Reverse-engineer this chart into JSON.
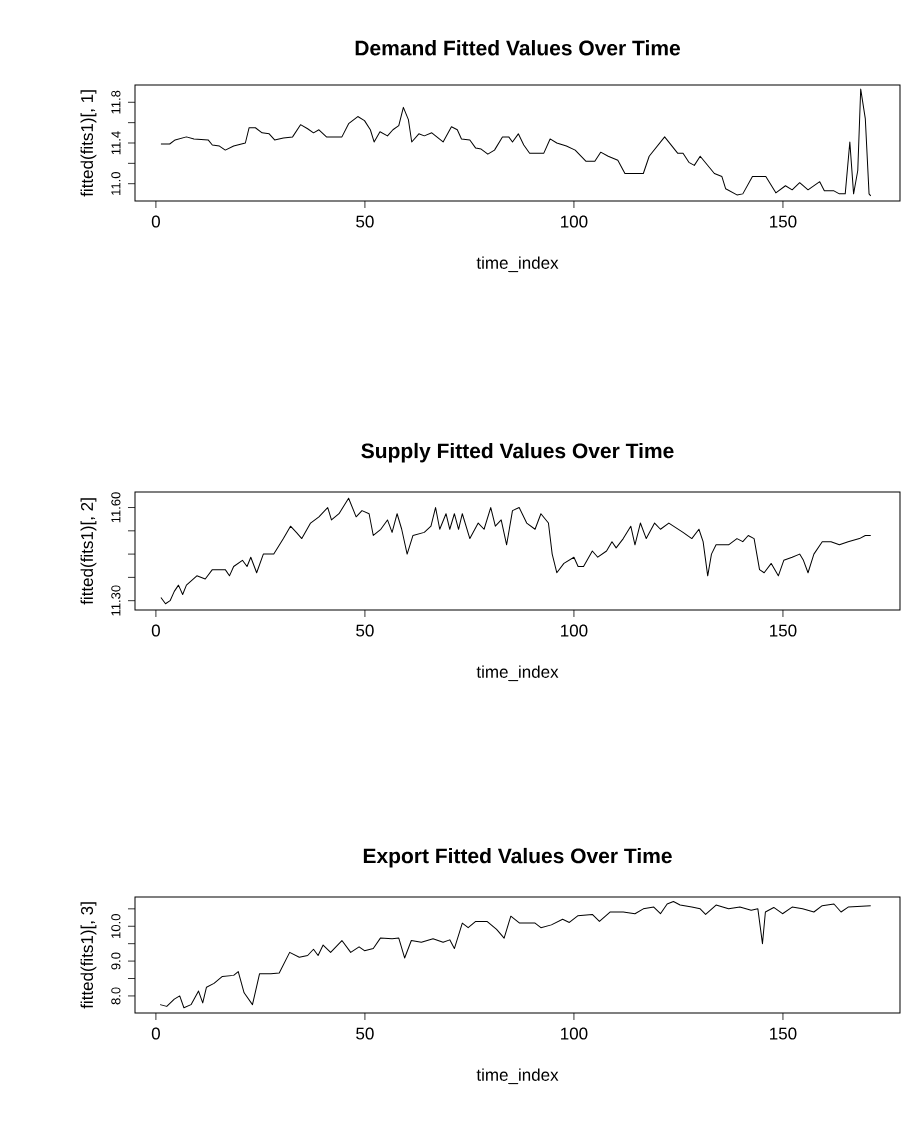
{
  "chart_data": [
    {
      "type": "line",
      "title": "Demand Fitted Values Over Time",
      "xlabel": "time_index",
      "ylabel": "fitted(fits1)[, 1]",
      "color": "#000000",
      "marker": "none",
      "line_style": "solid",
      "x": [
        1.2,
        3.3,
        4.6,
        7.3,
        9.1,
        12.5,
        13.5,
        15.2,
        16.6,
        18.6,
        21.4,
        22.3,
        23.8,
        25.4,
        27.1,
        28.4,
        30.5,
        32.7,
        34.6,
        36.3,
        37.7,
        39,
        40.8,
        44.5,
        46.1,
        48.3,
        49.9,
        51.3,
        52.2,
        53.6,
        55.4,
        56.7,
        58.1,
        59.2,
        60.4,
        61.2,
        62.9,
        64.2,
        66,
        68.7,
        70.7,
        72.1,
        73.1,
        75.1,
        76.5,
        77.8,
        79.4,
        81,
        82.9,
        84.4,
        85.3,
        86.7,
        88,
        89.4,
        92.8,
        94.3,
        95.9,
        98.2,
        100.3,
        102.9,
        105,
        106.4,
        108.2,
        110.5,
        112.2,
        116.6,
        118,
        121.7,
        124.8,
        126.1,
        127.5,
        128.8,
        130.2,
        133.6,
        135.4,
        136.3,
        139,
        140.4,
        142.7,
        145.9,
        148.3,
        150.6,
        152.2,
        154,
        156,
        158.8,
        159.9,
        162.2,
        163.5,
        164.9,
        166,
        166.9,
        167.9,
        168.6,
        169.7,
        170.6,
        171
      ],
      "values": [
        11.39,
        11.39,
        11.43,
        11.46,
        11.44,
        11.43,
        11.38,
        11.37,
        11.33,
        11.37,
        11.4,
        11.55,
        11.55,
        11.5,
        11.49,
        11.43,
        11.45,
        11.46,
        11.58,
        11.54,
        11.5,
        11.53,
        11.46,
        11.46,
        11.59,
        11.66,
        11.62,
        11.53,
        11.41,
        11.51,
        11.47,
        11.53,
        11.57,
        11.75,
        11.63,
        11.41,
        11.49,
        11.47,
        11.5,
        11.41,
        11.56,
        11.53,
        11.44,
        11.43,
        11.35,
        11.34,
        11.29,
        11.33,
        11.46,
        11.46,
        11.41,
        11.49,
        11.38,
        11.3,
        11.3,
        11.44,
        11.4,
        11.37,
        11.33,
        11.22,
        11.22,
        11.31,
        11.27,
        11.23,
        11.1,
        11.1,
        11.27,
        11.46,
        11.3,
        11.3,
        11.21,
        11.18,
        11.27,
        11.1,
        11.07,
        10.95,
        10.89,
        10.9,
        11.07,
        11.07,
        10.91,
        10.98,
        10.94,
        11.01,
        10.94,
        11.02,
        10.93,
        10.93,
        10.9,
        10.9,
        11.41,
        10.9,
        11.13,
        11.93,
        11.64,
        10.9,
        10.88
      ],
      "xlim": [
        -5,
        178
      ],
      "ylim": [
        10.83,
        11.97
      ],
      "xticks": [
        0,
        50,
        100,
        150
      ],
      "yticks": [
        {
          "value": 11,
          "label": "11.0"
        },
        {
          "value": 11.2,
          "label": null
        },
        11.4,
        {
          "value": 11.6,
          "label": null
        },
        11.8
      ]
    },
    {
      "type": "line",
      "title": "Supply Fitted Values Over Time",
      "xlabel": "time_index",
      "ylabel": "fitted(fits1)[, 2]",
      "color": "#000000",
      "marker": "none",
      "line_style": "solid",
      "x": [
        1.2,
        2.3,
        3.4,
        4.4,
        5.4,
        6.4,
        7.3,
        9.8,
        11.8,
        13.5,
        16.6,
        17.6,
        18.6,
        20.7,
        21.8,
        22.7,
        24.1,
        25.7,
        28.2,
        30.5,
        32.2,
        33.6,
        34.9,
        37,
        39,
        41.1,
        42,
        43.8,
        46.1,
        47.9,
        49.3,
        51,
        52,
        53.8,
        55.4,
        56.5,
        57.7,
        58.8,
        60.1,
        61.5,
        64.2,
        65.8,
        66.9,
        67.9,
        69.4,
        70.3,
        71.4,
        72.4,
        73.3,
        75.1,
        77.1,
        78.5,
        80.1,
        81.2,
        82.6,
        83.9,
        85.3,
        86.9,
        88.7,
        90.7,
        92.1,
        93.9,
        94.8,
        95.9,
        97.6,
        100,
        101,
        102.3,
        104.4,
        105.7,
        107.8,
        109.1,
        110.1,
        111.8,
        113.6,
        114.6,
        115.9,
        117.3,
        119.3,
        120.7,
        122.7,
        126.1,
        128.2,
        129.9,
        130.9,
        132,
        132.9,
        134,
        137,
        139,
        140.4,
        141.7,
        143.1,
        144.4,
        145.5,
        147.2,
        148.9,
        150.2,
        152.2,
        154,
        154.9,
        156,
        157.4,
        159.4,
        161.5,
        163.5,
        165.6,
        168.3,
        169.7,
        171
      ],
      "values": [
        11.31,
        11.29,
        11.3,
        11.33,
        11.35,
        11.32,
        11.35,
        11.38,
        11.37,
        11.4,
        11.4,
        11.38,
        11.41,
        11.43,
        11.41,
        11.44,
        11.39,
        11.45,
        11.45,
        11.5,
        11.54,
        11.52,
        11.5,
        11.55,
        11.57,
        11.6,
        11.56,
        11.58,
        11.63,
        11.57,
        11.59,
        11.58,
        11.51,
        11.53,
        11.56,
        11.52,
        11.58,
        11.53,
        11.45,
        11.51,
        11.52,
        11.54,
        11.6,
        11.53,
        11.58,
        11.53,
        11.58,
        11.53,
        11.58,
        11.5,
        11.55,
        11.53,
        11.6,
        11.54,
        11.56,
        11.48,
        11.59,
        11.6,
        11.55,
        11.53,
        11.58,
        11.55,
        11.45,
        11.39,
        11.42,
        11.44,
        11.41,
        11.41,
        11.46,
        11.44,
        11.46,
        11.49,
        11.47,
        11.5,
        11.54,
        11.48,
        11.55,
        11.5,
        11.55,
        11.53,
        11.55,
        11.52,
        11.5,
        11.53,
        11.49,
        11.38,
        11.45,
        11.48,
        11.48,
        11.5,
        11.49,
        11.51,
        11.5,
        11.4,
        11.39,
        11.42,
        11.38,
        11.43,
        11.44,
        11.45,
        11.43,
        11.39,
        11.45,
        11.49,
        11.49,
        11.48,
        11.49,
        11.5,
        11.51,
        11.51
      ],
      "xlim": [
        -5,
        178
      ],
      "ylim": [
        11.27,
        11.65
      ],
      "xticks": [
        0,
        50,
        100,
        150
      ],
      "yticks": [
        {
          "value": 11.3,
          "label": "11.30"
        },
        {
          "value": 11.375,
          "label": null
        },
        {
          "value": 11.45,
          "label": null
        },
        {
          "value": 11.525,
          "label": null
        },
        {
          "value": 11.6,
          "label": "11.60"
        }
      ]
    },
    {
      "type": "line",
      "title": "Export Fitted Values Over Time",
      "xlabel": "time_index",
      "ylabel": "fitted(fits1)[, 3]",
      "color": "#000000",
      "marker": "none",
      "line_style": "solid",
      "x": [
        1,
        2.6,
        4.4,
        5.7,
        6.7,
        8.4,
        10.2,
        11.2,
        12.1,
        13.9,
        15.9,
        18.6,
        19.7,
        21.1,
        23.1,
        24.8,
        27.5,
        29.5,
        32,
        34.3,
        36.3,
        37.7,
        38.8,
        40,
        41.8,
        44.5,
        46.6,
        48.6,
        49.9,
        52,
        53.7,
        56.5,
        58.1,
        59.5,
        61.1,
        63.5,
        66.3,
        68.7,
        70.3,
        71.4,
        73.3,
        74.7,
        76.5,
        79.2,
        81.5,
        83.3,
        84.9,
        87,
        90.7,
        92.1,
        94.6,
        97.3,
        98.9,
        100.9,
        104.4,
        106.1,
        108.7,
        111.8,
        114.6,
        116.6,
        119.1,
        120.7,
        122.3,
        123.8,
        125.4,
        128.2,
        130.2,
        131.5,
        134,
        137,
        139.7,
        142.4,
        144,
        145.1,
        145.8,
        147.8,
        149.9,
        152.2,
        154.7,
        157.4,
        159.4,
        162.2,
        163.9,
        165.6,
        171
      ],
      "values": [
        7.75,
        7.7,
        7.91,
        8.0,
        7.66,
        7.75,
        8.14,
        7.8,
        8.25,
        8.36,
        8.56,
        8.59,
        8.7,
        8.09,
        7.75,
        8.64,
        8.64,
        8.66,
        9.25,
        9.11,
        9.16,
        9.34,
        9.16,
        9.46,
        9.25,
        9.59,
        9.25,
        9.41,
        9.3,
        9.36,
        9.66,
        9.64,
        9.66,
        9.09,
        9.59,
        9.54,
        9.64,
        9.54,
        9.61,
        9.36,
        10.09,
        9.96,
        10.14,
        10.14,
        9.91,
        9.66,
        10.29,
        10.09,
        10.09,
        9.96,
        10.04,
        10.2,
        10.11,
        10.3,
        10.34,
        10.14,
        10.41,
        10.41,
        10.36,
        10.5,
        10.55,
        10.36,
        10.64,
        10.71,
        10.61,
        10.55,
        10.5,
        10.34,
        10.61,
        10.5,
        10.55,
        10.46,
        10.5,
        9.5,
        10.41,
        10.54,
        10.36,
        10.55,
        10.5,
        10.41,
        10.59,
        10.64,
        10.41,
        10.55,
        10.59
      ],
      "xlim": [
        -5,
        178
      ],
      "ylim": [
        7.51,
        10.84
      ],
      "xticks": [
        0,
        50,
        100,
        150
      ],
      "yticks": [
        {
          "value": 8,
          "label": "8.0"
        },
        {
          "value": 8.5,
          "label": null
        },
        {
          "value": 9,
          "label": "9.0"
        },
        {
          "value": 9.5,
          "label": null
        },
        {
          "value": 10,
          "label": "10.0"
        },
        {
          "value": 10.5,
          "label": null
        }
      ]
    }
  ]
}
